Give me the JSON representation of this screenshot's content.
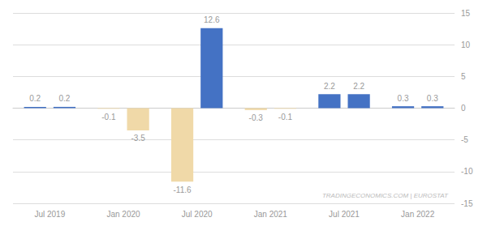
{
  "chart_data": {
    "type": "bar",
    "categories": [
      "Jul 2019",
      "Jan 2020",
      "Jul 2020",
      "Jan 2021",
      "Jul 2021",
      "Jan 2022"
    ],
    "series": [
      {
        "values": [
          0.2,
          -0.1,
          -11.6,
          -0.3,
          2.2,
          0.3
        ],
        "colors": [
          "#4472c4",
          "#f0d9a8",
          "#f0d9a8",
          "#f0d9a8",
          "#4472c4",
          "#4472c4"
        ]
      },
      {
        "values": [
          0.2,
          -3.5,
          12.6,
          -0.1,
          2.2,
          0.3
        ],
        "colors": [
          "#4472c4",
          "#f0d9a8",
          "#4472c4",
          "#f0d9a8",
          "#4472c4",
          "#4472c4"
        ]
      }
    ],
    "ylim": [
      -15,
      15
    ],
    "yticks": [
      -15,
      -10,
      -5,
      0,
      5,
      10,
      15
    ],
    "grid": true,
    "data_labels": true,
    "annotations": [
      "TRADINGECONOMICS.COM | EUROSTAT"
    ]
  }
}
